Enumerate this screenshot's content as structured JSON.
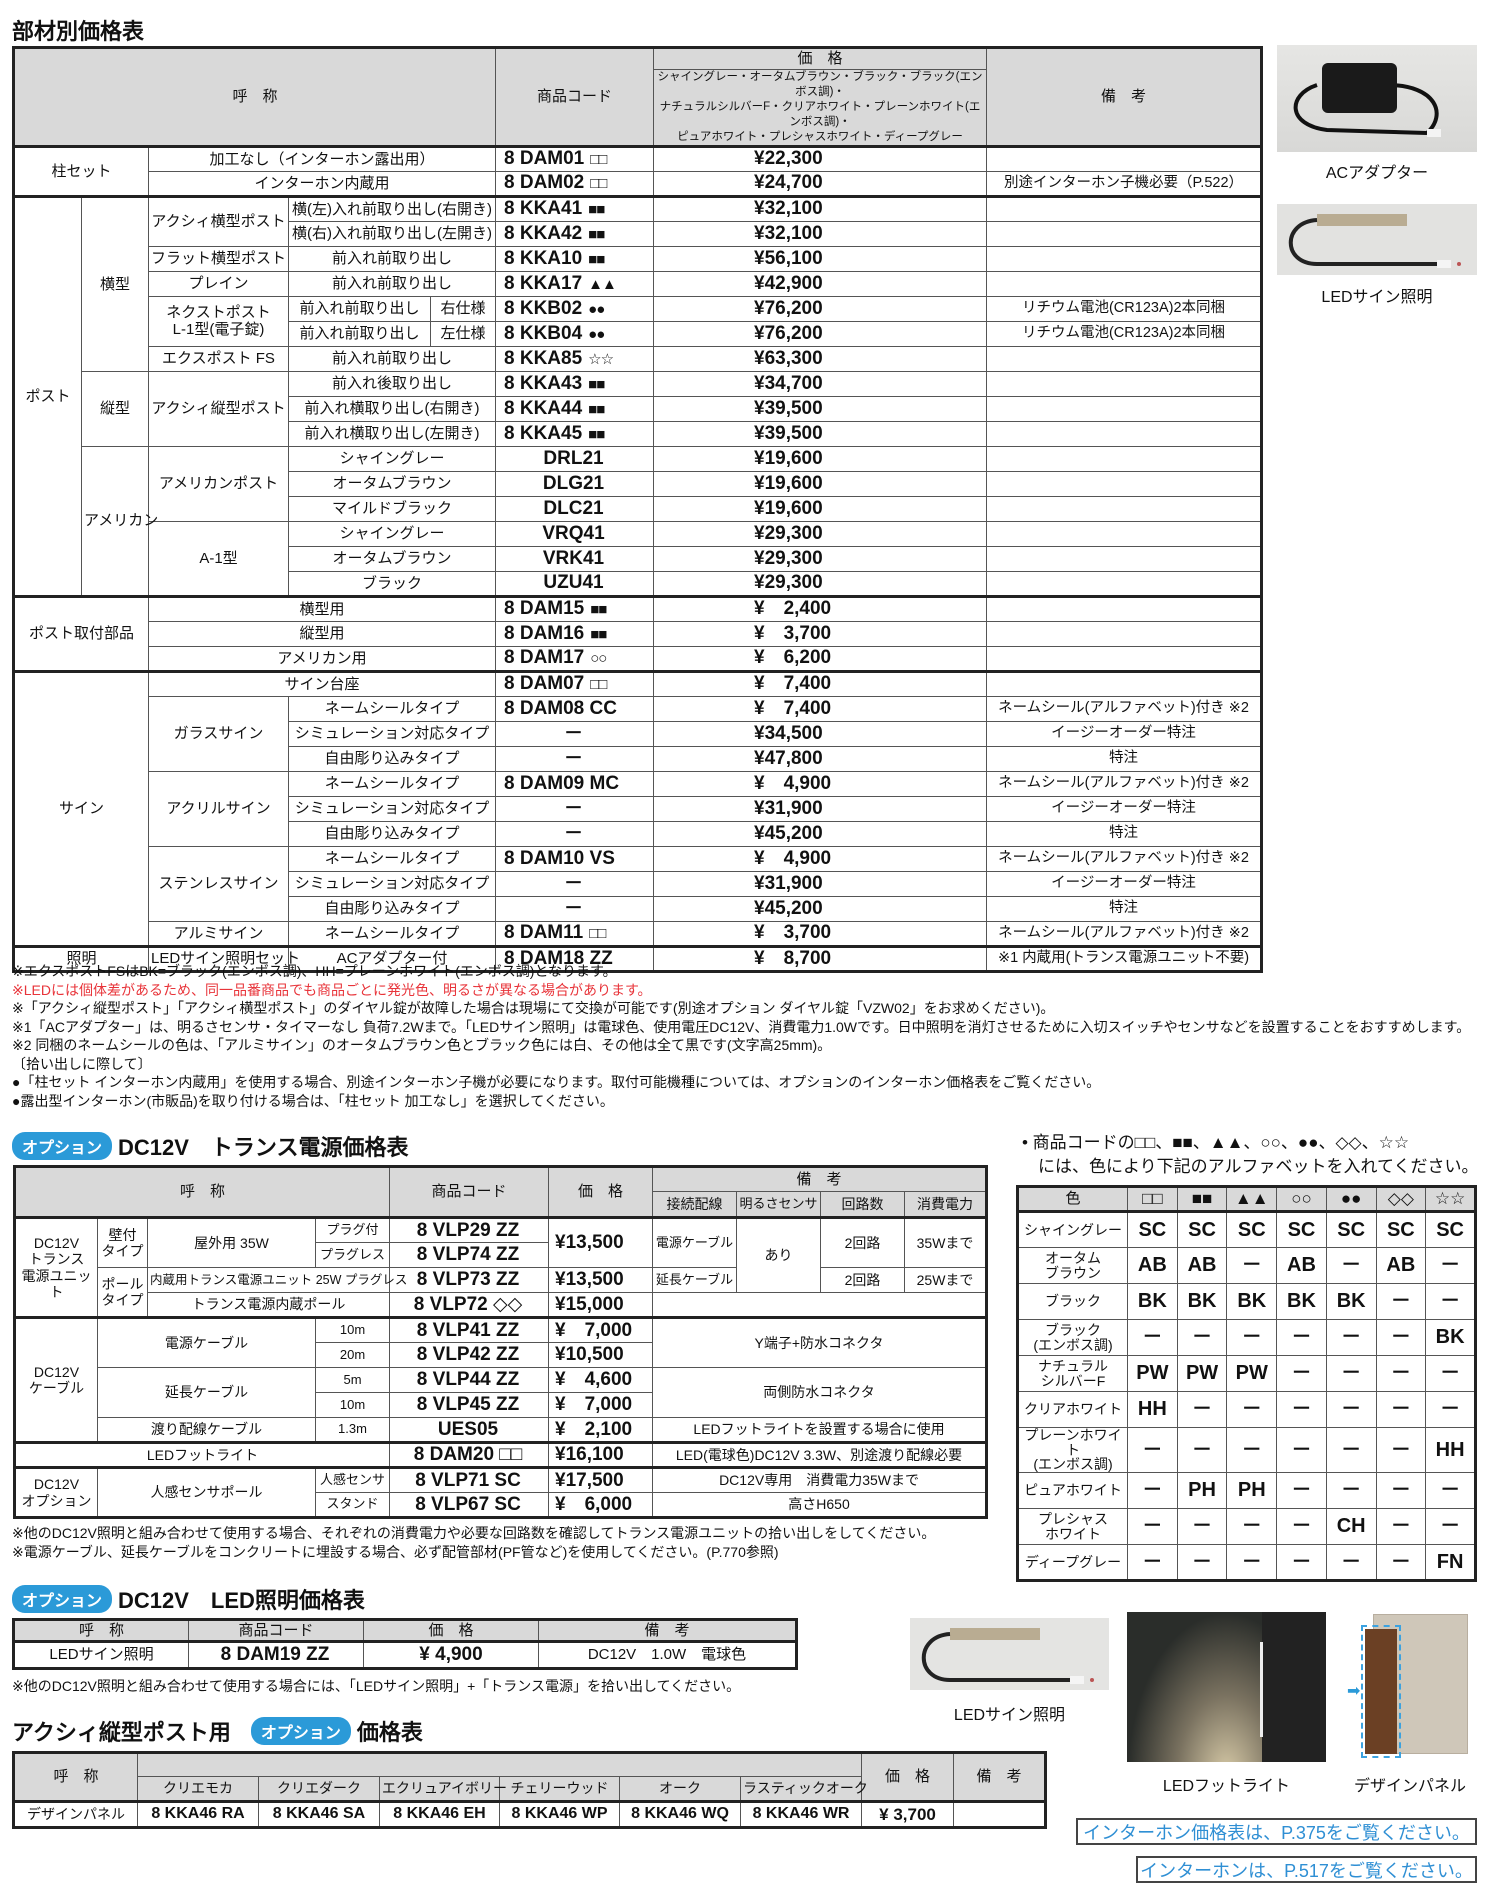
{
  "parts_table": {
    "title": "部材別価格表",
    "header": {
      "name": "呼　称",
      "code": "商品コード",
      "price": "価　格",
      "price_colors": "シャイングレー・オータムブラウン・ブラック・ブラック(エンボス調)・\nナチュラルシルバーF・クリアホワイト・プレーンホワイト(エンボス調)・\nピュアホワイト・プレシャスホワイト・ディープグレー",
      "note": "備　考"
    },
    "rows": [
      {
        "g": "柱セット",
        "name": "加工なし（インターホン露出用）",
        "code": "8 DAM01",
        "sym": "□□",
        "price": "¥22,300",
        "note": ""
      },
      {
        "name": "インターホン内蔵用",
        "code": "8 DAM02",
        "sym": "□□",
        "price": "¥24,700",
        "note": "別途インターホン子機必要（P.522）"
      },
      {
        "g": "ポスト",
        "sub": "横型",
        "name": "アクシィ横型ポスト",
        "variant": "横(左)入れ前取り出し(右開き)",
        "code": "8 KKA41",
        "sym": "■■",
        "price": "¥32,100",
        "note": ""
      },
      {
        "variant": "横(右)入れ前取り出し(左開き)",
        "code": "8 KKA42",
        "sym": "■■",
        "price": "¥32,100",
        "note": ""
      },
      {
        "name": "フラット横型ポスト",
        "variant": "前入れ前取り出し",
        "code": "8 KKA10",
        "sym": "■■",
        "price": "¥56,100",
        "note": ""
      },
      {
        "name": "プレイン",
        "variant": "前入れ前取り出し",
        "code": "8 KKA17",
        "sym": "▲▲",
        "price": "¥42,900",
        "note": ""
      },
      {
        "name": "ネクストポスト\nL-1型(電子錠)",
        "variant": "前入れ前取り出し",
        "side": "右仕様",
        "code": "8 KKB02",
        "sym": "●●",
        "price": "¥76,200",
        "note": "リチウム電池(CR123A)2本同梱"
      },
      {
        "variant": "前入れ前取り出し",
        "side": "左仕様",
        "code": "8 KKB04",
        "sym": "●●",
        "price": "¥76,200",
        "note": "リチウム電池(CR123A)2本同梱"
      },
      {
        "name": "エクスポスト FS",
        "variant": "前入れ前取り出し",
        "code": "8 KKA85",
        "sym": "☆☆",
        "price": "¥63,300",
        "note": ""
      },
      {
        "sub": "縦型",
        "name": "アクシィ縦型ポスト",
        "variant": "前入れ後取り出し",
        "code": "8 KKA43",
        "sym": "■■",
        "price": "¥34,700",
        "note": ""
      },
      {
        "variant": "前入れ横取り出し(右開き)",
        "code": "8 KKA44",
        "sym": "■■",
        "price": "¥39,500",
        "note": ""
      },
      {
        "variant": "前入れ横取り出し(左開き)",
        "code": "8 KKA45",
        "sym": "■■",
        "price": "¥39,500",
        "note": ""
      },
      {
        "sub": "アメリカン",
        "name": "アメリカンポスト",
        "variant": "シャイングレー",
        "code": "DRL21",
        "price": "¥19,600",
        "note": ""
      },
      {
        "variant": "オータムブラウン",
        "code": "DLG21",
        "price": "¥19,600",
        "note": ""
      },
      {
        "variant": "マイルドブラック",
        "code": "DLC21",
        "price": "¥19,600",
        "note": ""
      },
      {
        "name": "A-1型",
        "variant": "シャイングレー",
        "code": "VRQ41",
        "price": "¥29,300",
        "note": ""
      },
      {
        "variant": "オータムブラウン",
        "code": "VRK41",
        "price": "¥29,300",
        "note": ""
      },
      {
        "variant": "ブラック",
        "code": "UZU41",
        "price": "¥29,300",
        "note": ""
      },
      {
        "g": "ポスト取付部品",
        "name": "横型用",
        "code": "8 DAM15",
        "sym": "■■",
        "price": "¥　2,400",
        "note": ""
      },
      {
        "name": "縦型用",
        "code": "8 DAM16",
        "sym": "■■",
        "price": "¥　3,700",
        "note": ""
      },
      {
        "name": "アメリカン用",
        "code": "8 DAM17",
        "sym": "○○",
        "price": "¥　6,200",
        "note": ""
      },
      {
        "g": "サイン",
        "name": "サイン台座",
        "code": "8 DAM07",
        "sym": "□□",
        "price": "¥　7,400",
        "note": ""
      },
      {
        "name": "ガラスサイン",
        "variant": "ネームシールタイプ",
        "code": "8 DAM08 CC",
        "price": "¥　7,400",
        "note": "ネームシール(アルファベット)付き ※2"
      },
      {
        "variant": "シミュレーション対応タイプ",
        "code": "－",
        "price": "¥34,500",
        "note": "イージーオーダー特注"
      },
      {
        "variant": "自由彫り込みタイプ",
        "code": "－",
        "price": "¥47,800",
        "note": "特注"
      },
      {
        "name": "アクリルサイン",
        "variant": "ネームシールタイプ",
        "code": "8 DAM09 MC",
        "price": "¥　4,900",
        "note": "ネームシール(アルファベット)付き ※2"
      },
      {
        "variant": "シミュレーション対応タイプ",
        "code": "－",
        "price": "¥31,900",
        "note": "イージーオーダー特注"
      },
      {
        "variant": "自由彫り込みタイプ",
        "code": "－",
        "price": "¥45,200",
        "note": "特注"
      },
      {
        "name": "ステンレスサイン",
        "variant": "ネームシールタイプ",
        "code": "8 DAM10 VS",
        "price": "¥　4,900",
        "note": "ネームシール(アルファベット)付き ※2"
      },
      {
        "variant": "シミュレーション対応タイプ",
        "code": "－",
        "price": "¥31,900",
        "note": "イージーオーダー特注"
      },
      {
        "variant": "自由彫り込みタイプ",
        "code": "－",
        "price": "¥45,200",
        "note": "特注"
      },
      {
        "name": "アルミサイン",
        "variant": "ネームシールタイプ",
        "code": "8 DAM11",
        "sym": "□□",
        "price": "¥　3,700",
        "note": "ネームシール(アルファベット)付き ※2"
      },
      {
        "g": "照明",
        "name": "LEDサイン照明セット",
        "variant": "ACアダプター付",
        "code": "8 DAM18 ZZ",
        "price": "¥　8,700",
        "note": "※1 内蔵用(トランス電源ユニット不要)"
      }
    ]
  },
  "product_images": {
    "ac_adapter": "ACアダプター",
    "led_sign_light": "LEDサイン照明",
    "led_sign_light_2": "LEDサイン照明",
    "led_foot_light": "LEDフットライト",
    "design_panel": "デザインパネル"
  },
  "notes": [
    {
      "text": "※エクスポストFSはBK=ブラック(エンボス調)、HH=プレーンホワイト(エンボス調)となります。"
    },
    {
      "text": "※LEDには個体差があるため、同一品番商品でも商品ごとに発光色、明るさが異なる場合があります。",
      "color": "#e8343a"
    },
    {
      "text": "※「アクシィ縦型ポスト」「アクシィ横型ポスト」のダイヤル錠が故障した場合は現場にて交換が可能です(別途オプション ダイヤル錠「VZW02」をお求めください)。"
    },
    {
      "text": "※1「ACアダプター」は、明るさセンサ・タイマーなし 負荷7.2Wまで。「LEDサイン照明」は電球色、使用電圧DC12V、消費電力1.0Wです。日中照明を消灯させるために入切スイッチやセンサなどを設置することをおすすめします。"
    },
    {
      "text": "※2 同梱のネームシールの色は、「アルミサイン」のオータムブラウン色とブラック色には白、その他は全て黒です(文字高25mm)。"
    },
    {
      "text": "〔拾い出しに際して〕"
    },
    {
      "text": "●「柱セット インターホン内蔵用」を使用する場合、別途インターホン子機が必要になります。取付可能機種については、オプションのインターホン価格表をご覧ください。"
    },
    {
      "text": "●露出型インターホン(市販品)を取り付ける場合は、「柱セット 加工なし」を選択してください。"
    }
  ],
  "option_badge": "オプション",
  "trans_table": {
    "title": "DC12V　トランス電源価格表",
    "header": {
      "name": "呼　称",
      "code": "商品コード",
      "price": "価　格",
      "note": "備　考",
      "wiring": "接続配線",
      "sensor": "明るさセンサ",
      "circuits": "回路数",
      "power": "消費電力"
    },
    "rows": [
      {
        "a": "DC12V\nトランス\n電源ユニット",
        "b": "壁付\nタイプ",
        "c": "屋外用 35W",
        "d": "プラグ付",
        "code": "8 VLP29 ZZ",
        "price": "¥13,500",
        "wiring": "電源ケーブル",
        "sensor": "あり",
        "circuits": "2回路",
        "power": "35Wまで"
      },
      {
        "d": "プラグレス",
        "code": "8 VLP74 ZZ"
      },
      {
        "b": "ポール\nタイプ",
        "c": "内蔵用トランス電源ユニット 25W プラグレス",
        "code": "8 VLP73 ZZ",
        "price": "¥13,500",
        "wiring": "延長ケーブル",
        "circuits": "2回路",
        "power": "25Wまで"
      },
      {
        "c": "トランス電源内蔵ポール",
        "code": "8 VLP72 ◇◇",
        "price": "¥15,000",
        "memo": ""
      },
      {
        "a": "DC12V\nケーブル",
        "c": "電源ケーブル",
        "d": "10m",
        "code": "8 VLP41 ZZ",
        "price": "¥　7,000",
        "memo": "Y端子+防水コネクタ"
      },
      {
        "d": "20m",
        "code": "8 VLP42 ZZ",
        "price": "¥10,500"
      },
      {
        "c": "延長ケーブル",
        "d": "5m",
        "code": "8 VLP44 ZZ",
        "price": "¥　4,600",
        "memo": "両側防水コネクタ"
      },
      {
        "d": "10m",
        "code": "8 VLP45 ZZ",
        "price": "¥　7,000"
      },
      {
        "c": "渡り配線ケーブル",
        "d": "1.3m",
        "code": "UES05",
        "price": "¥　2,100",
        "memo": "LEDフットライトを設置する場合に使用"
      },
      {
        "a": "LEDフットライト",
        "code": "8 DAM20 □□",
        "price": "¥16,100",
        "memo": "LED(電球色)DC12V 3.3W、別途渡り配線必要"
      },
      {
        "a": "DC12V\nオプション",
        "c": "人感センサポール",
        "d": "人感センサ",
        "code": "8 VLP71 SC",
        "price": "¥17,500",
        "memo": "DC12V専用　消費電力35Wまで"
      },
      {
        "d": "スタンド",
        "code": "8 VLP67 SC",
        "price": "¥　6,000",
        "memo": "高さH650"
      }
    ],
    "notes": [
      "※他のDC12V照明と組み合わせて使用する場合、それぞれの消費電力や必要な回路数を確認してトランス電源ユニットの拾い出しをしてください。",
      "※電源ケーブル、延長ケーブルをコンクリートに埋設する場合、必ず配管部材(PF管など)を使用してください。(P.770参照)"
    ]
  },
  "color_code": {
    "intro": [
      "• 商品コードの□□、■■、▲▲、○○、●●、◇◇、☆☆",
      "には、色により下記のアルファベットを入れてください。"
    ],
    "header": [
      "色",
      "□□",
      "■■",
      "▲▲",
      "○○",
      "●●",
      "◇◇",
      "☆☆"
    ],
    "rows": [
      {
        "color": "シャイングレー",
        "values": [
          "SC",
          "SC",
          "SC",
          "SC",
          "SC",
          "SC",
          "SC"
        ]
      },
      {
        "color": "オータム\nブラウン",
        "values": [
          "AB",
          "AB",
          "－",
          "AB",
          "－",
          "AB",
          "－"
        ]
      },
      {
        "color": "ブラック",
        "values": [
          "BK",
          "BK",
          "BK",
          "BK",
          "BK",
          "－",
          "－"
        ]
      },
      {
        "color": "ブラック\n(エンボス調)",
        "values": [
          "－",
          "－",
          "－",
          "－",
          "－",
          "－",
          "BK"
        ]
      },
      {
        "color": "ナチュラル\nシルバーF",
        "values": [
          "PW",
          "PW",
          "PW",
          "－",
          "－",
          "－",
          "－"
        ]
      },
      {
        "color": "クリアホワイト",
        "values": [
          "HH",
          "－",
          "－",
          "－",
          "－",
          "－",
          "－"
        ]
      },
      {
        "color": "プレーンホワイト\n(エンボス調)",
        "values": [
          "－",
          "－",
          "－",
          "－",
          "－",
          "－",
          "HH"
        ]
      },
      {
        "color": "ピュアホワイト",
        "values": [
          "－",
          "PH",
          "PH",
          "－",
          "－",
          "－",
          "－"
        ]
      },
      {
        "color": "プレシャス\nホワイト",
        "values": [
          "－",
          "－",
          "－",
          "－",
          "CH",
          "－",
          "－"
        ]
      },
      {
        "color": "ディープグレー",
        "values": [
          "－",
          "－",
          "－",
          "－",
          "－",
          "－",
          "FN"
        ]
      }
    ]
  },
  "led_table": {
    "title": "DC12V　LED照明価格表",
    "header": [
      "呼　称",
      "商品コード",
      "価　格",
      "備　考"
    ],
    "row": [
      "LEDサイン照明",
      "8 DAM19 ZZ",
      "¥ 4,900",
      "DC12V　1.0W　電球色"
    ],
    "note": "※他のDC12V照明と組み合わせて使用する場合には、「LEDサイン照明」+「トランス電源」を拾い出してください。"
  },
  "axis_table": {
    "title_pre": "アクシィ縦型ポスト用",
    "title_post": "価格表",
    "header": {
      "name": "呼　称",
      "colors": [
        "クリエモカ",
        "クリエダーク",
        "エクリュアイボリー",
        "チェリーウッド",
        "オーク",
        "ラスティックオーク"
      ],
      "price": "価　格",
      "note": "備　考"
    },
    "row": {
      "name": "デザインパネル",
      "codes": [
        "8 KKA46 RA",
        "8 KKA46 SA",
        "8 KKA46 EH",
        "8 KKA46 WP",
        "8 KKA46 WQ",
        "8 KKA46 WR"
      ],
      "price": "¥ 3,700",
      "note": ""
    }
  },
  "links": {
    "intercom_price": "インターホン価格表は、P.375をご覧ください。",
    "intercom": "インターホンは、P.517をご覧ください。"
  },
  "colors": {
    "accent": "#2b9ad8",
    "header_gray": "#d9d9d9",
    "warning": "#e8343a",
    "link_blue": "#2f8fd4"
  }
}
